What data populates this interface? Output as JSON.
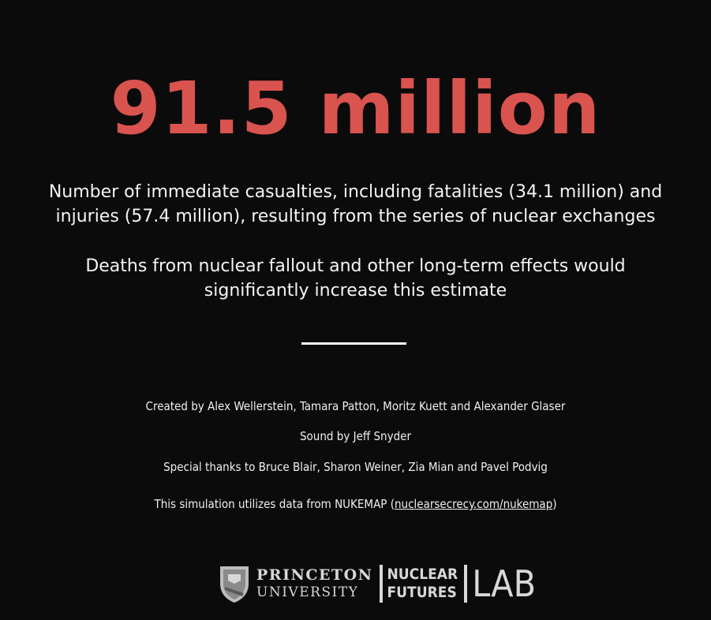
{
  "headline": {
    "value": "91.5 million",
    "color": "#d9534f"
  },
  "summary": {
    "line1": "Number of immediate casualties, including fatalities (34.1 million) and",
    "line2": "injuries (57.4 million), resulting from the series of nuclear exchanges"
  },
  "note": {
    "line1": "Deaths from nuclear fallout and other long-term effects would",
    "line2": "significantly increase this estimate"
  },
  "credits": {
    "created_by": "Created by Alex Wellerstein, Tamara Patton, Moritz Kuett and Alexander Glaser",
    "sound_by": "Sound by Jeff Snyder",
    "thanks": "Special thanks to Bruce Blair, Sharon Weiner, Zia Mian and Pavel Podvig",
    "data_prefix": "This simulation utilizes data from NUKEMAP (",
    "data_link": "nuclearsecrecy.com/nukemap",
    "data_suffix": ")"
  },
  "logos": {
    "princeton_line1": "PRINCETON",
    "princeton_line2": "UNIVERSITY",
    "nf_line1": "NUCLEAR",
    "nf_line2": "FUTURES",
    "lab": "LAB",
    "shield_icon": "princeton-shield-icon"
  }
}
